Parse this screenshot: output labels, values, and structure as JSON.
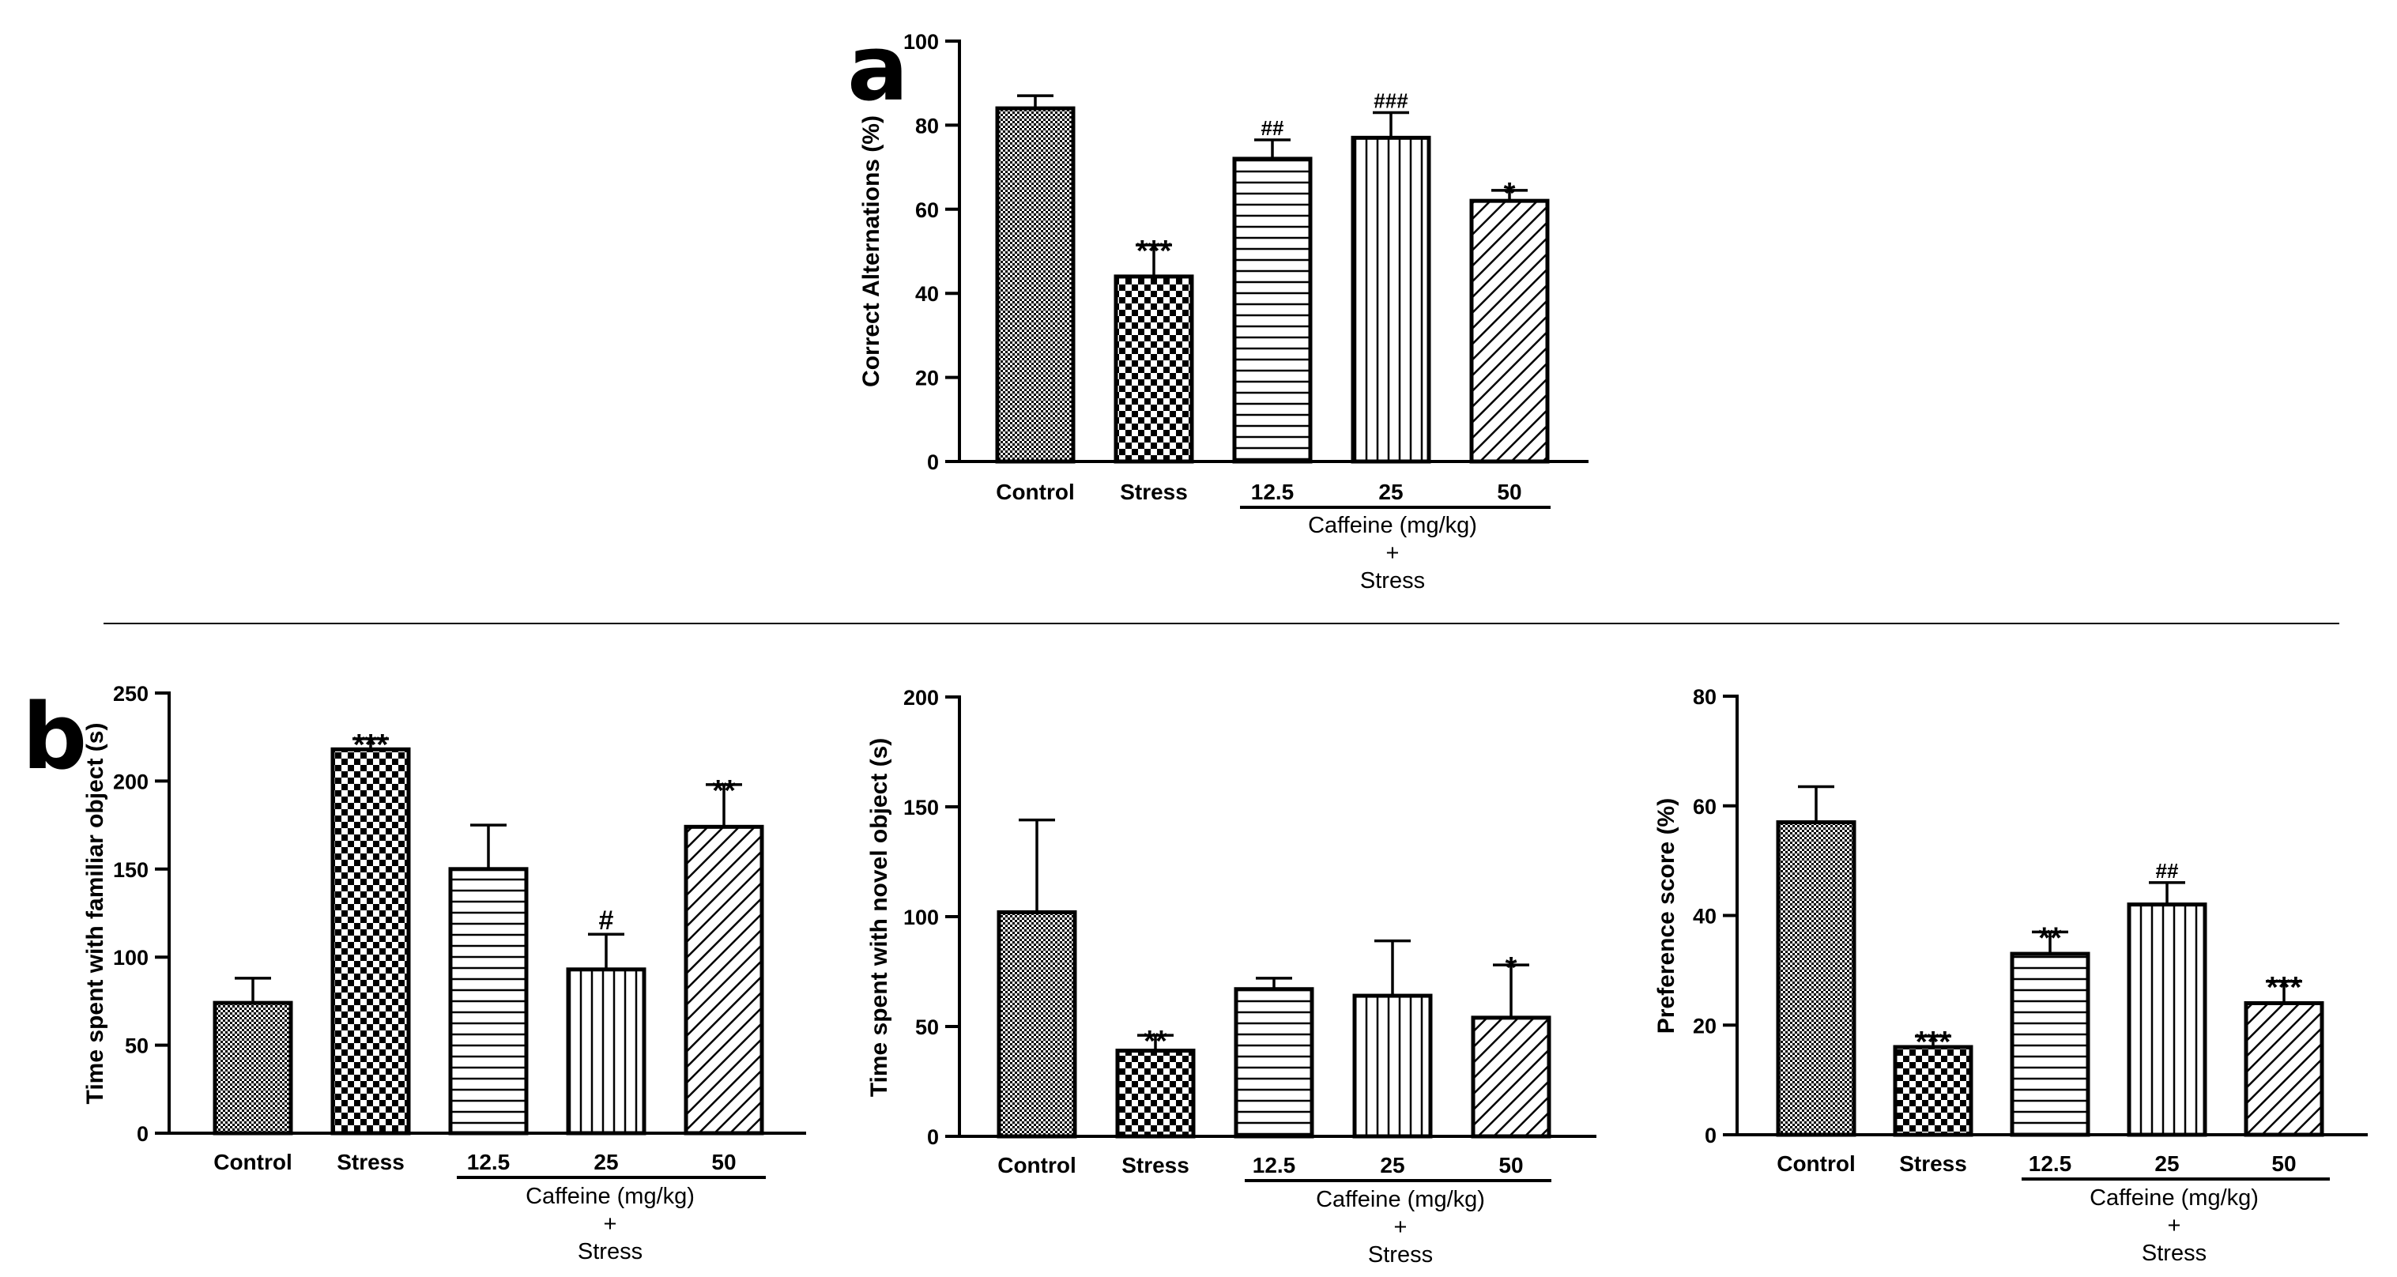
{
  "panel_letters": [
    "a",
    "b"
  ],
  "chart_data": [
    {
      "type": "bar",
      "panel": "a",
      "ylabel": "Correct Alternations (%)",
      "ylim": [
        0,
        100
      ],
      "yticks": [
        "0",
        "20",
        "40",
        "60",
        "80",
        "100"
      ],
      "categories": [
        "Control",
        "Stress",
        "12.5",
        "25",
        "50"
      ],
      "values": [
        84,
        44,
        72,
        77,
        62
      ],
      "errors": [
        3,
        7.5,
        4.5,
        6,
        2.5
      ],
      "significance": [
        "",
        "***",
        "##",
        "###",
        "*"
      ],
      "patterns": [
        "fine-check",
        "checker",
        "horizontal",
        "vertical",
        "diagonal"
      ],
      "group_label": [
        "Caffeine (mg/kg)",
        "+",
        "Stress"
      ],
      "grid": false
    },
    {
      "type": "bar",
      "panel": "b",
      "ylabel": "Time spent with familiar object (s)",
      "ylim": [
        0,
        250
      ],
      "yticks": [
        "0",
        "50",
        "100",
        "150",
        "200",
        "250"
      ],
      "categories": [
        "Control",
        "Stress",
        "12.5",
        "25",
        "50"
      ],
      "values": [
        74,
        218,
        150,
        93,
        174
      ],
      "errors": [
        14,
        6,
        25,
        20,
        24
      ],
      "significance": [
        "",
        "***",
        "",
        "#",
        "**"
      ],
      "patterns": [
        "fine-check",
        "checker",
        "horizontal",
        "vertical",
        "diagonal"
      ],
      "group_label": [
        "Caffeine (mg/kg)",
        "+",
        "Stress"
      ],
      "grid": false
    },
    {
      "type": "bar",
      "panel": "b",
      "ylabel": "Time spent with novel object (s)",
      "ylim": [
        0,
        200
      ],
      "yticks": [
        "0",
        "50",
        "100",
        "150",
        "200"
      ],
      "categories": [
        "Control",
        "Stress",
        "12.5",
        "25",
        "50"
      ],
      "values": [
        102,
        39,
        67,
        64,
        54
      ],
      "errors": [
        42,
        7,
        5,
        25,
        24
      ],
      "significance": [
        "",
        "**",
        "",
        "",
        "*"
      ],
      "patterns": [
        "fine-check",
        "checker",
        "horizontal",
        "vertical",
        "diagonal"
      ],
      "group_label": [
        "Caffeine (mg/kg)",
        "+",
        "Stress"
      ],
      "grid": false
    },
    {
      "type": "bar",
      "panel": "b",
      "ylabel": "Preference score (%)",
      "ylim": [
        0,
        80
      ],
      "yticks": [
        "0",
        "20",
        "40",
        "60",
        "80"
      ],
      "categories": [
        "Control",
        "Stress",
        "12.5",
        "25",
        "50"
      ],
      "values": [
        57,
        16,
        33,
        42,
        24
      ],
      "errors": [
        6.5,
        2,
        4,
        4,
        4
      ],
      "significance": [
        "",
        "***",
        "**",
        "##",
        "***"
      ],
      "patterns": [
        "fine-check",
        "checker",
        "horizontal",
        "vertical",
        "diagonal"
      ],
      "group_label": [
        "Caffeine (mg/kg)",
        "+",
        "Stress"
      ],
      "grid": false
    }
  ]
}
